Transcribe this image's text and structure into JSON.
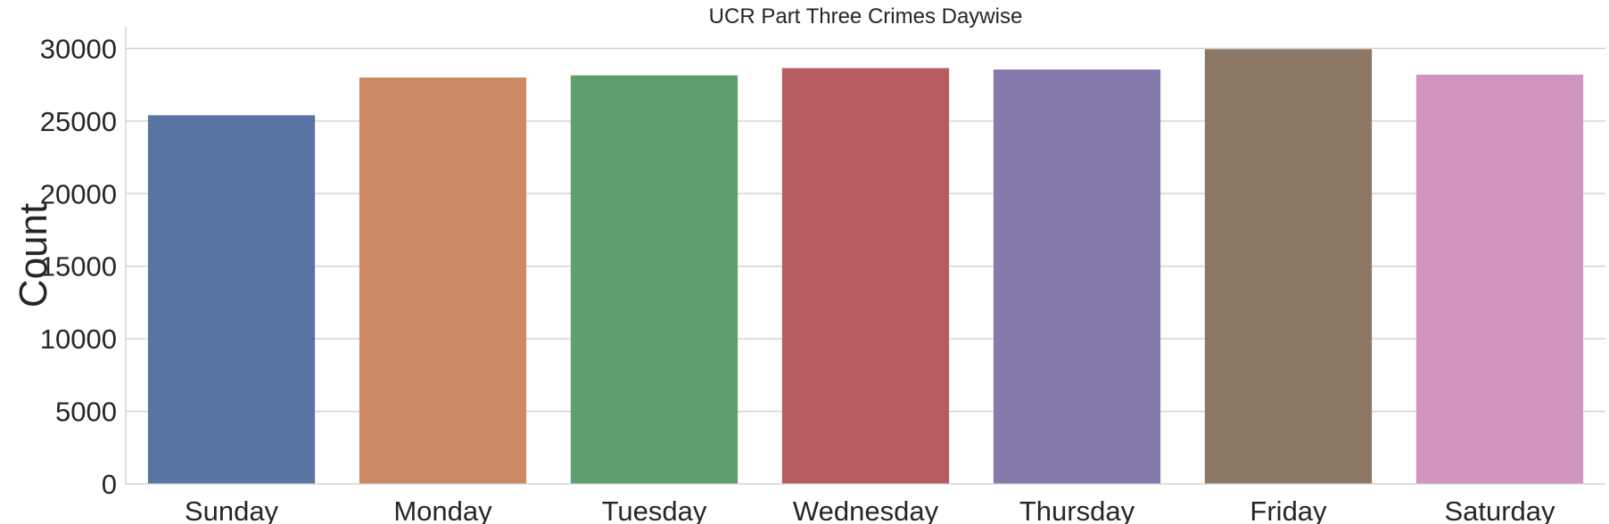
{
  "chart_data": {
    "type": "bar",
    "title": "UCR Part Three Crimes Daywise",
    "xlabel": "",
    "ylabel": "Count",
    "categories": [
      "Sunday",
      "Monday",
      "Tuesday",
      "Wednesday",
      "Thursday",
      "Friday",
      "Saturday"
    ],
    "values": [
      25400,
      28000,
      28150,
      28650,
      28550,
      29950,
      28200
    ],
    "colors": [
      "#5975a4",
      "#cc8963",
      "#5f9e6e",
      "#b55d60",
      "#857aab",
      "#8d7866",
      "#d095bf"
    ],
    "ylim": [
      0,
      31500
    ],
    "yticks": [
      0,
      5000,
      10000,
      15000,
      20000,
      25000,
      30000
    ],
    "ytick_labels": [
      "0",
      "5000",
      "10000",
      "15000",
      "20000",
      "25000",
      "30000"
    ],
    "grid": "horizontal",
    "legend": "none"
  }
}
